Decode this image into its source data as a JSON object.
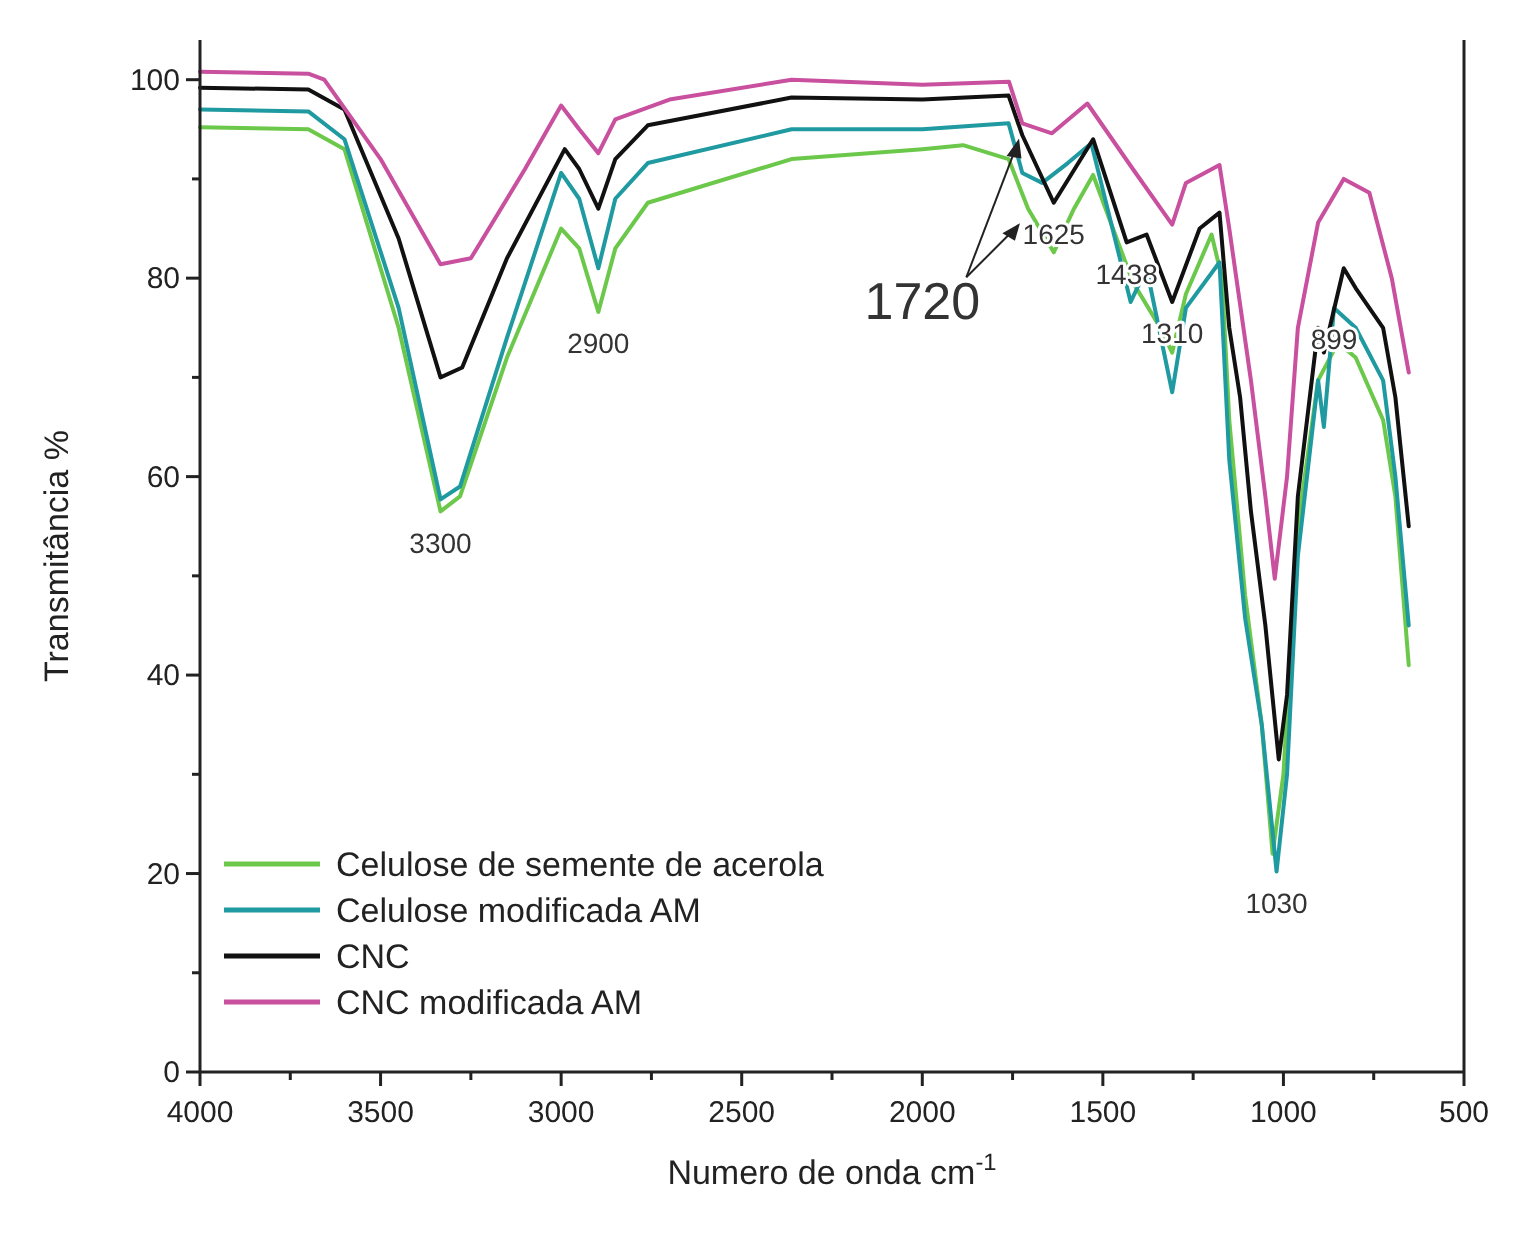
{
  "chart_data": {
    "type": "line",
    "xlabel": "Numero de onda cm$^{-1}$",
    "ylabel": "Transmitância %",
    "xlim": [
      4000,
      500
    ],
    "ylim": [
      0,
      104
    ],
    "xticks": [
      4000,
      {
        "value": 3750,
        "label": null
      },
      3500,
      {
        "value": 3250,
        "label": null
      },
      3000,
      {
        "value": 2750,
        "label": null
      },
      2500,
      {
        "value": 2250,
        "label": null
      },
      2000,
      {
        "value": 1750,
        "label": null
      },
      1500,
      {
        "value": 1250,
        "label": null
      },
      1000,
      {
        "value": 750,
        "label": null
      },
      500
    ],
    "yticks": [
      0,
      {
        "value": 10,
        "label": null
      },
      20,
      {
        "value": 30,
        "label": null
      },
      40,
      {
        "value": 50,
        "label": null
      },
      60,
      {
        "value": 70,
        "label": null
      },
      80,
      {
        "value": 90,
        "label": null
      },
      100
    ],
    "legend": "bottom left",
    "grid": false,
    "marker": "none",
    "line_style": "solid",
    "series": [
      {
        "name": "Celulose de semente de acerola",
        "color": "#6cc84a",
        "x": [
          4000,
          3700,
          3600,
          3450,
          3334,
          3280,
          3150,
          3000,
          2950,
          2897,
          2850,
          2760,
          2362,
          2000,
          1887,
          1761,
          1707,
          1636,
          1580,
          1527,
          1417,
          1341,
          1308,
          1270,
          1199,
          1170,
          1150,
          1106,
          1060,
          1030,
          1000,
          960,
          904,
          849,
          800,
          724,
          690,
          653
        ],
        "values": [
          95.2,
          95,
          93,
          75,
          56.5,
          58,
          72,
          85,
          83,
          76.6,
          83,
          87.6,
          92,
          93,
          93.4,
          92,
          87,
          82.6,
          87,
          90.4,
          79.6,
          75,
          72.5,
          78.4,
          84.4,
          80,
          65.7,
          48,
          35,
          22,
          30,
          55,
          69.7,
          73.5,
          72,
          65.7,
          58,
          41
        ]
      },
      {
        "name": "Celulose modificada AM",
        "color": "#1f9aa0",
        "x": [
          4000,
          3700,
          3600,
          3450,
          3334,
          3280,
          3150,
          3000,
          2950,
          2897,
          2850,
          2760,
          2362,
          2000,
          1761,
          1723,
          1668,
          1597,
          1532,
          1423,
          1379,
          1308,
          1270,
          1177,
          1150,
          1106,
          1060,
          1019,
          990,
          960,
          904,
          888,
          860,
          800,
          724,
          690,
          653
        ],
        "values": [
          97,
          96.8,
          94,
          77,
          57.7,
          59,
          74,
          90.6,
          88,
          81,
          88,
          91.6,
          95,
          95,
          95.6,
          90.6,
          89.6,
          91.6,
          93.6,
          77.6,
          81,
          68.5,
          77,
          81.6,
          61.7,
          45.7,
          35,
          20.2,
          30,
          52,
          69.7,
          65,
          77,
          75,
          69.7,
          60,
          45
        ]
      },
      {
        "name": "CNC",
        "color": "#111111",
        "x": [
          4000,
          3700,
          3600,
          3450,
          3334,
          3274,
          3150,
          2990,
          2950,
          2897,
          2850,
          2760,
          2362,
          2000,
          1761,
          1723,
          1636,
          1527,
          1434,
          1379,
          1308,
          1232,
          1177,
          1150,
          1120,
          1090,
          1050,
          1013,
          990,
          960,
          904,
          888,
          833,
          800,
          724,
          690,
          653
        ],
        "values": [
          99.2,
          99,
          97,
          84,
          70,
          71,
          82,
          93,
          91,
          87,
          92,
          95.4,
          98.2,
          98,
          98.4,
          94.4,
          87.6,
          94,
          83.6,
          84.4,
          77.6,
          85,
          86.6,
          75,
          68,
          56.5,
          45,
          31.5,
          38,
          58,
          75,
          72.5,
          81,
          79,
          75,
          68,
          55
        ]
      },
      {
        "name": "CNC modificada AM",
        "color": "#c8509e",
        "x": [
          4000,
          3700,
          3656,
          3500,
          3334,
          3250,
          3100,
          3000,
          2950,
          2897,
          2850,
          2700,
          2362,
          2000,
          1760,
          1723,
          1641,
          1543,
          1417,
          1308,
          1270,
          1177,
          1150,
          1090,
          1050,
          1024,
          990,
          960,
          904,
          833,
          762,
          700,
          653
        ],
        "values": [
          100.8,
          100.6,
          100,
          92,
          81.4,
          82,
          91,
          97.4,
          95,
          92.6,
          96,
          98,
          100,
          99.5,
          99.8,
          95.6,
          94.6,
          97.6,
          91,
          85.4,
          89.6,
          91.4,
          85,
          69.7,
          58,
          49.7,
          60,
          75,
          85.6,
          90,
          88.6,
          80,
          70.5
        ]
      }
    ],
    "annotations": [
      {
        "text": "3300",
        "x": 3334,
        "y": 56.5
      },
      {
        "text": "2900",
        "x": 2897,
        "y": 76.6
      },
      {
        "text": "1720",
        "x": 1723,
        "y": 94.4
      },
      {
        "text": "1625",
        "x": 1636,
        "y": 87.6
      },
      {
        "text": "1438",
        "x": 1434,
        "y": 83.6
      },
      {
        "text": "1310",
        "x": 1308,
        "y": 77.6
      },
      {
        "text": "899",
        "x": 860,
        "y": 77
      },
      {
        "text": "1030",
        "x": 1019,
        "y": 20.2
      }
    ]
  }
}
